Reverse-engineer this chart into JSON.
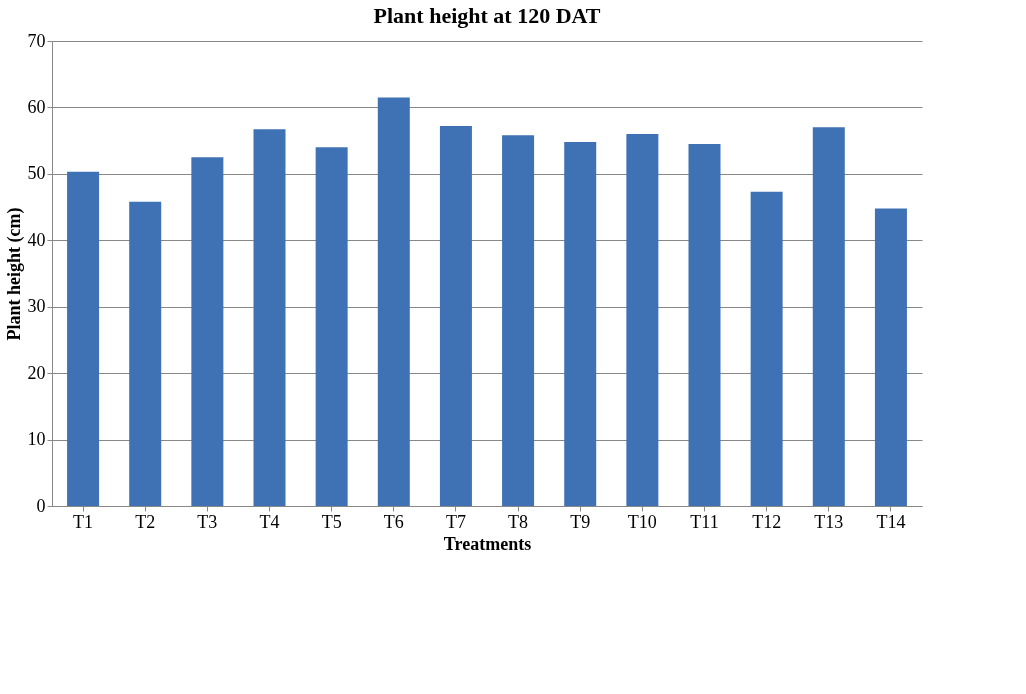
{
  "chart_data": {
    "type": "bar",
    "title": "Plant height at 120 DAT",
    "xlabel": "Treatments",
    "ylabel": "Plant height (cm)",
    "categories": [
      "T1",
      "T2",
      "T3",
      "T4",
      "T5",
      "T6",
      "T7",
      "T8",
      "T9",
      "T10",
      "T11",
      "T12",
      "T13",
      "T14"
    ],
    "values": [
      50.3,
      45.8,
      52.5,
      56.7,
      54.0,
      61.5,
      57.2,
      55.8,
      54.8,
      56.0,
      54.5,
      47.3,
      57.0,
      44.8
    ],
    "color": "#3f72b5",
    "ylim": [
      0,
      70
    ],
    "yticks": [
      0,
      10,
      20,
      30,
      40,
      50,
      60,
      70
    ],
    "grid": "y"
  }
}
